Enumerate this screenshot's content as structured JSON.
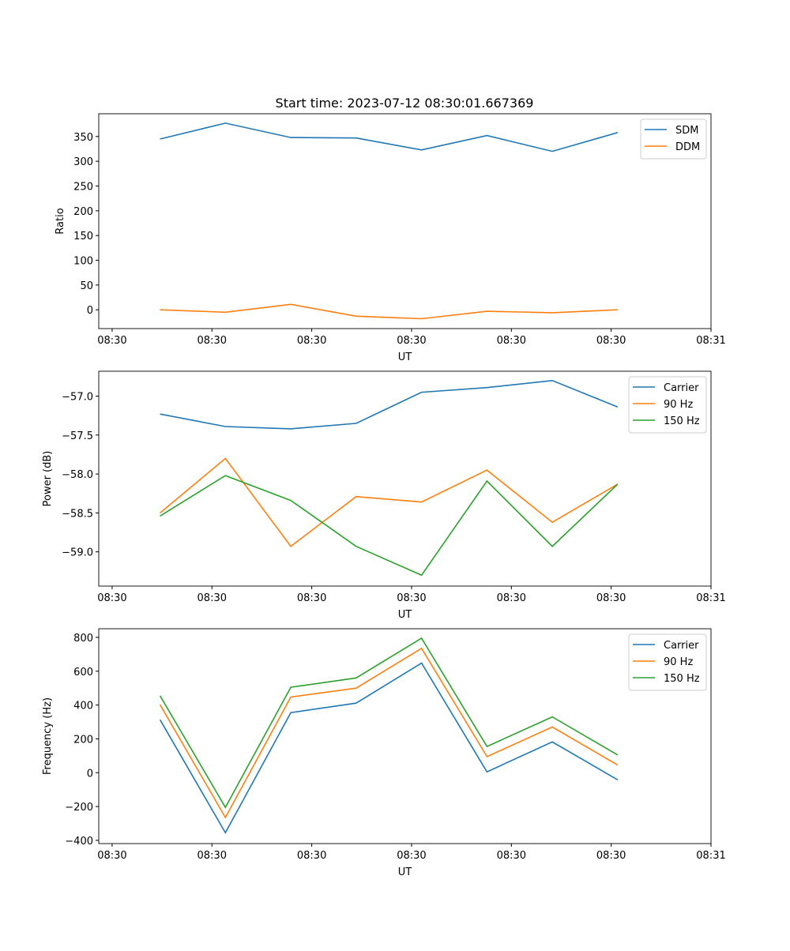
{
  "title": "Start time: 2023-07-12 08:30:01.667369",
  "colors": {
    "blue": "#1f77b4",
    "orange": "#ff7f0e",
    "green": "#2ca02c"
  },
  "chart_data": [
    {
      "type": "line",
      "xlabel": "UT",
      "ylabel": "Ratio",
      "x": [
        4.8,
        11.35,
        17.9,
        24.45,
        31.0,
        37.55,
        44.1,
        50.65
      ],
      "xlim": [
        -1.34,
        60
      ],
      "xticks": [
        0,
        10,
        20,
        30,
        40,
        50,
        60
      ],
      "xtick_labels": [
        "08:30",
        "08:30",
        "08:30",
        "08:30",
        "08:30",
        "08:30",
        "08:31"
      ],
      "ylim": [
        -38,
        396
      ],
      "yticks": [
        0,
        50,
        100,
        150,
        200,
        250,
        300,
        350
      ],
      "ytick_labels": [
        "0",
        "50",
        "100",
        "150",
        "200",
        "250",
        "300",
        "350"
      ],
      "legend": "top-right",
      "series": [
        {
          "name": "SDM",
          "color": "#1f77b4",
          "values": [
            345,
            377,
            348,
            347,
            323,
            352,
            320,
            358
          ]
        },
        {
          "name": "DDM",
          "color": "#ff7f0e",
          "values": [
            0,
            -5,
            11,
            -13,
            -18,
            -3,
            -6,
            0
          ]
        }
      ]
    },
    {
      "type": "line",
      "xlabel": "UT",
      "ylabel": "Power (dB)",
      "x": [
        4.8,
        11.35,
        17.9,
        24.45,
        31.0,
        37.55,
        44.1,
        50.65
      ],
      "xlim": [
        -1.34,
        60
      ],
      "xticks": [
        0,
        10,
        20,
        30,
        40,
        50,
        60
      ],
      "xtick_labels": [
        "08:30",
        "08:30",
        "08:30",
        "08:30",
        "08:30",
        "08:30",
        "08:31"
      ],
      "ylim": [
        -59.44,
        -56.68
      ],
      "yticks": [
        -59.0,
        -58.5,
        -58.0,
        -57.5,
        -57.0
      ],
      "ytick_labels": [
        "−59.0",
        "−58.5",
        "−58.0",
        "−57.5",
        "−57.0"
      ],
      "legend": "top-right",
      "series": [
        {
          "name": "Carrier",
          "color": "#1f77b4",
          "values": [
            -57.23,
            -57.39,
            -57.42,
            -57.35,
            -56.95,
            -56.89,
            -56.8,
            -57.14
          ]
        },
        {
          "name": "90 Hz",
          "color": "#ff7f0e",
          "values": [
            -58.5,
            -57.8,
            -58.93,
            -58.29,
            -58.36,
            -57.95,
            -58.62,
            -58.13
          ]
        },
        {
          "name": "150 Hz",
          "color": "#2ca02c",
          "values": [
            -58.54,
            -58.02,
            -58.34,
            -58.93,
            -59.3,
            -58.09,
            -58.93,
            -58.13
          ]
        }
      ]
    },
    {
      "type": "line",
      "xlabel": "UT",
      "ylabel": "Frequency (Hz)",
      "x": [
        4.8,
        11.35,
        17.9,
        24.45,
        31.0,
        37.55,
        44.1,
        50.65
      ],
      "xlim": [
        -1.34,
        60
      ],
      "xticks": [
        0,
        10,
        20,
        30,
        40,
        50,
        60
      ],
      "xtick_labels": [
        "08:30",
        "08:30",
        "08:30",
        "08:30",
        "08:30",
        "08:30",
        "08:31"
      ],
      "ylim": [
        -419,
        851
      ],
      "yticks": [
        -400,
        -200,
        0,
        200,
        400,
        600,
        800
      ],
      "ytick_labels": [
        "−400",
        "−200",
        "0",
        "200",
        "400",
        "600",
        "800"
      ],
      "legend": "top-right",
      "series": [
        {
          "name": "Carrier",
          "color": "#1f77b4",
          "values": [
            313,
            -355,
            355,
            411,
            648,
            5,
            182,
            -42
          ]
        },
        {
          "name": "90 Hz",
          "color": "#ff7f0e",
          "values": [
            402,
            -265,
            447,
            500,
            735,
            95,
            270,
            45
          ]
        },
        {
          "name": "150 Hz",
          "color": "#2ca02c",
          "values": [
            455,
            -205,
            505,
            560,
            795,
            155,
            330,
            105
          ]
        }
      ]
    }
  ]
}
